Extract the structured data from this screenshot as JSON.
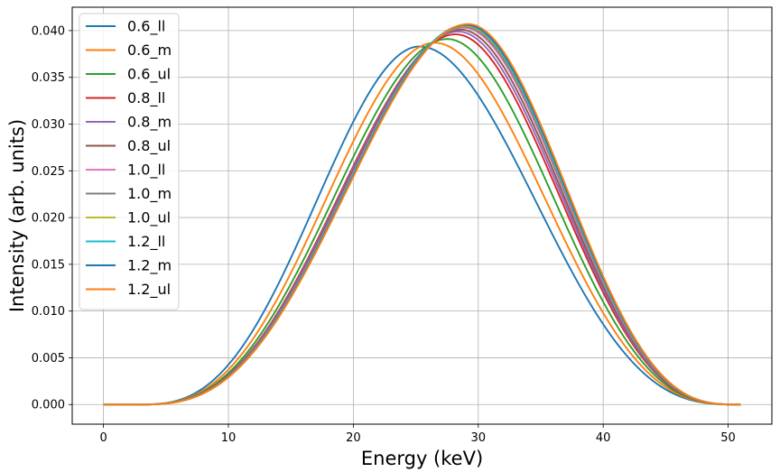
{
  "chart_data": {
    "type": "line",
    "title": "",
    "xlabel": "Energy (keV)",
    "ylabel": "Intensity (arb. units)",
    "xlim": [
      -2.5,
      53.5
    ],
    "ylim": [
      -0.0021,
      0.0425
    ],
    "xticks": [
      0,
      10,
      20,
      30,
      40,
      50
    ],
    "xtick_labels": [
      "0",
      "10",
      "20",
      "30",
      "40",
      "50"
    ],
    "yticks": [
      0.0,
      0.005,
      0.01,
      0.015,
      0.02,
      0.025,
      0.03,
      0.035,
      0.04
    ],
    "ytick_labels": [
      "0.000",
      "0.005",
      "0.010",
      "0.015",
      "0.020",
      "0.025",
      "0.030",
      "0.035",
      "0.040"
    ],
    "grid": true,
    "legend_position": "upper-left",
    "x_start": 0,
    "x_end": 51,
    "series": [
      {
        "name": "0.6_ll",
        "color": "#1f77b4",
        "peak_x": 25.3,
        "peak_y": 0.0383
      },
      {
        "name": "0.6_m",
        "color": "#ff7f0e",
        "peak_x": 26.5,
        "peak_y": 0.0387
      },
      {
        "name": "0.6_ul",
        "color": "#2ca02c",
        "peak_x": 27.5,
        "peak_y": 0.0391
      },
      {
        "name": "0.8_ll",
        "color": "#d62728",
        "peak_x": 28.2,
        "peak_y": 0.0396
      },
      {
        "name": "0.8_m",
        "color": "#9467bd",
        "peak_x": 28.4,
        "peak_y": 0.0399
      },
      {
        "name": "0.8_ul",
        "color": "#8c564b",
        "peak_x": 28.6,
        "peak_y": 0.0401
      },
      {
        "name": "1.0_ll",
        "color": "#e377c2",
        "peak_x": 28.8,
        "peak_y": 0.0403
      },
      {
        "name": "1.0_m",
        "color": "#7f7f7f",
        "peak_x": 28.9,
        "peak_y": 0.0404
      },
      {
        "name": "1.0_ul",
        "color": "#bcbd22",
        "peak_x": 29.0,
        "peak_y": 0.0405
      },
      {
        "name": "1.2_ll",
        "color": "#17becf",
        "peak_x": 29.0,
        "peak_y": 0.0406
      },
      {
        "name": "1.2_m",
        "color": "#1f77b4",
        "peak_x": 29.1,
        "peak_y": 0.0406
      },
      {
        "name": "1.2_ul",
        "color": "#ff7f0e",
        "peak_x": 29.2,
        "peak_y": 0.0407
      }
    ]
  }
}
